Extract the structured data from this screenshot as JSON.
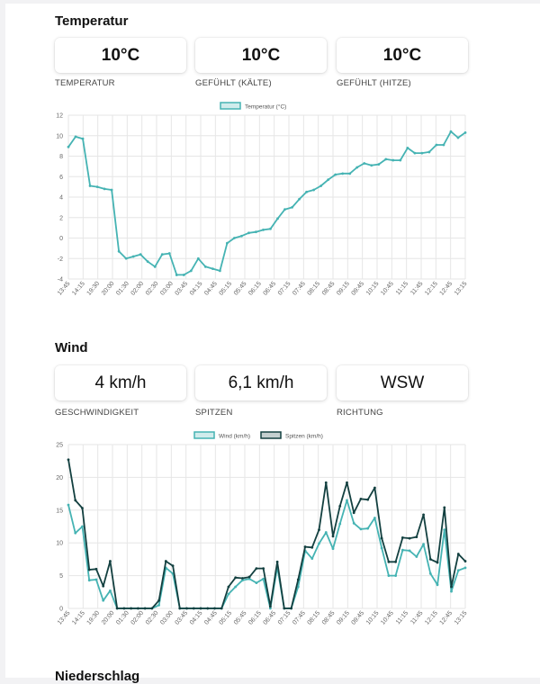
{
  "temperature": {
    "title": "Temperatur",
    "cards": [
      {
        "value": "10°C",
        "caption": "TEMPERATUR"
      },
      {
        "value": "10°C",
        "caption": "GEFÜHLT (KÄLTE)"
      },
      {
        "value": "10°C",
        "caption": "GEFÜHLT (HITZE)"
      }
    ]
  },
  "wind": {
    "title": "Wind",
    "cards": [
      {
        "value": "4 km/h",
        "caption": "GESCHWINDIGKEIT"
      },
      {
        "value": "6,1 km/h",
        "caption": "SPITZEN"
      },
      {
        "value": "WSW",
        "caption": "RICHTUNG"
      }
    ]
  },
  "next_section": {
    "title": "Niederschlag"
  },
  "colors": {
    "wind": "#45b3b3",
    "gusts": "#134040",
    "grid": "#e6e6e6"
  },
  "chart_data": [
    {
      "type": "line",
      "legend_position": "top",
      "grid": true,
      "ylim": [
        -4,
        12
      ],
      "yticks": [
        -4,
        -2,
        0,
        2,
        4,
        6,
        8,
        10,
        12
      ],
      "xticklabels": [
        "13:45",
        "14:15",
        "19:30",
        "20:00",
        "01:30",
        "02:00",
        "02:30",
        "03:00",
        "03:45",
        "04:15",
        "04:45",
        "05:15",
        "05:45",
        "06:15",
        "06:45",
        "07:15",
        "07:45",
        "08:15",
        "08:45",
        "09:15",
        "09:45",
        "10:15",
        "10:45",
        "11:15",
        "11:45",
        "12:15",
        "12:45",
        "13:15"
      ],
      "series": [
        {
          "name": "Temperatur (°C)",
          "color": "#45b3b3",
          "values": [
            8.9,
            9.9,
            9.7,
            5.1,
            5.0,
            4.8,
            4.7,
            -1.3,
            -2.0,
            -1.8,
            -1.6,
            -2.3,
            -2.8,
            -1.6,
            -1.5,
            -3.6,
            -3.6,
            -3.2,
            -2.0,
            -2.8,
            -3.0,
            -3.2,
            -0.5,
            0.0,
            0.2,
            0.5,
            0.6,
            0.8,
            0.9,
            1.9,
            2.8,
            3.0,
            3.8,
            4.5,
            4.7,
            5.1,
            5.7,
            6.2,
            6.3,
            6.3,
            6.9,
            7.3,
            7.1,
            7.2,
            7.7,
            7.6,
            7.6,
            8.8,
            8.3,
            8.3,
            8.4,
            9.1,
            9.1,
            10.4,
            9.8,
            10.3
          ]
        }
      ]
    },
    {
      "type": "line",
      "legend_position": "top",
      "grid": true,
      "ylim": [
        0,
        25
      ],
      "yticks": [
        0,
        5,
        10,
        15,
        20,
        25
      ],
      "xticklabels": [
        "13:45",
        "14:15",
        "19:30",
        "20:00",
        "01:30",
        "02:00",
        "02:30",
        "03:00",
        "03:45",
        "04:15",
        "04:45",
        "05:15",
        "05:45",
        "06:15",
        "06:45",
        "07:15",
        "07:45",
        "08:15",
        "08:45",
        "09:15",
        "09:45",
        "10:15",
        "10:45",
        "11:15",
        "11:45",
        "12:15",
        "12:45",
        "13:15"
      ],
      "series": [
        {
          "name": "Wind (km/h)",
          "color": "#45b3b3",
          "values": [
            15.8,
            11.5,
            12.5,
            4.3,
            4.4,
            1.2,
            2.7,
            0,
            0,
            0,
            0,
            0,
            0,
            0.5,
            6.2,
            5.3,
            0,
            0,
            0,
            0,
            0,
            0,
            0,
            2.2,
            3.3,
            4.3,
            4.5,
            3.9,
            4.5,
            0,
            6.3,
            0,
            0,
            3.3,
            8.8,
            7.6,
            9.9,
            11.6,
            9.1,
            12.9,
            16.5,
            13.0,
            12.1,
            12.2,
            13.8,
            9.2,
            5.0,
            5.0,
            8.9,
            8.8,
            7.9,
            9.8,
            5.3,
            3.6,
            12.0,
            2.6,
            5.8,
            6.2
          ]
        },
        {
          "name": "Spitzen (km/h)",
          "color": "#134040",
          "values": [
            22.7,
            16.5,
            15.3,
            5.9,
            6.0,
            3.4,
            7.2,
            0,
            0,
            0,
            0,
            0,
            0,
            1.2,
            7.2,
            6.5,
            0,
            0,
            0,
            0,
            0,
            0,
            0,
            3.3,
            4.7,
            4.6,
            4.8,
            6.1,
            6.1,
            0.3,
            7.1,
            0,
            0,
            4.4,
            9.4,
            9.3,
            12.0,
            19.2,
            11.0,
            15.6,
            19.2,
            14.6,
            16.7,
            16.6,
            18.4,
            10.7,
            7.1,
            7.1,
            10.8,
            10.7,
            10.9,
            14.3,
            7.5,
            7.0,
            15.4,
            3.3,
            8.3,
            7.2
          ]
        }
      ]
    }
  ]
}
